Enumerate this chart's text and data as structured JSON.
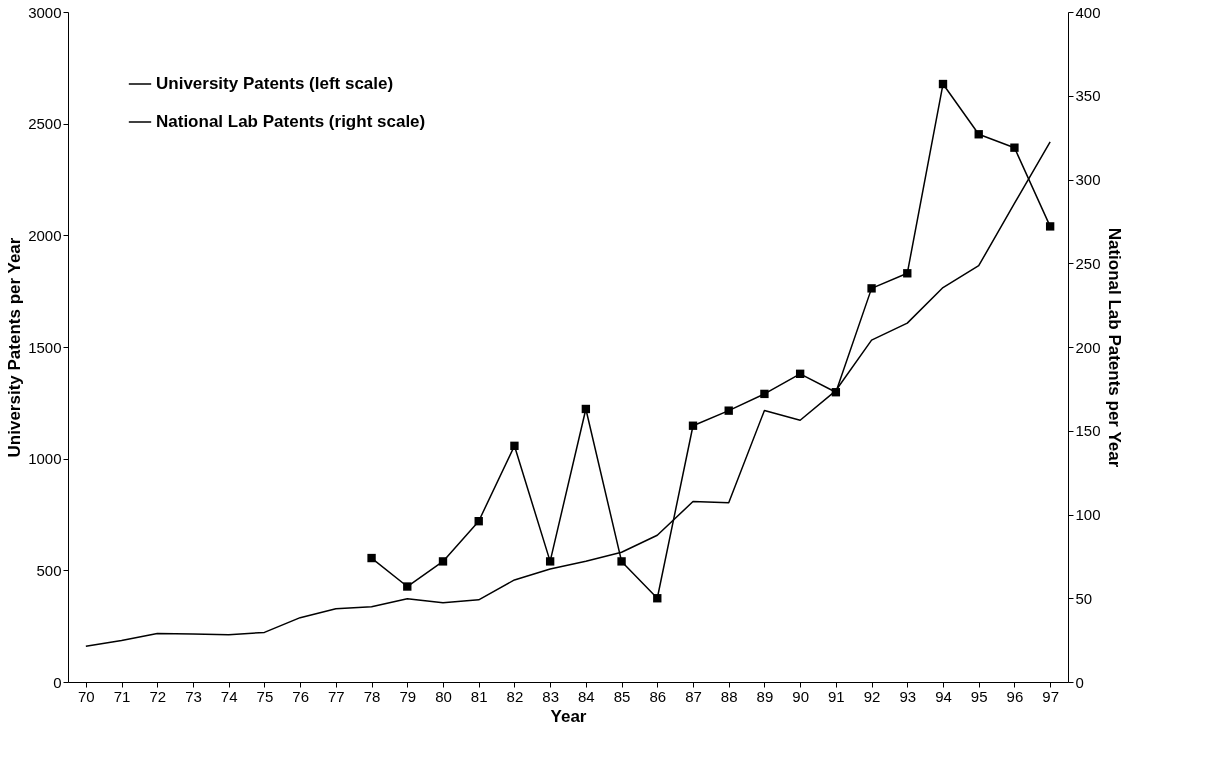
{
  "chart_data": {
    "type": "line",
    "xlabel": "Year",
    "ylabel": "University Patents per Year",
    "y2label": "National Lab Patents per Year",
    "categories": [
      "70",
      "71",
      "72",
      "73",
      "74",
      "75",
      "76",
      "77",
      "78",
      "79",
      "80",
      "81",
      "82",
      "83",
      "84",
      "85",
      "86",
      "87",
      "88",
      "89",
      "90",
      "91",
      "92",
      "93",
      "94",
      "95",
      "96",
      "97"
    ],
    "series": [
      {
        "name": "University Patents (left scale)",
        "color": "#000000",
        "marker": "none",
        "values": [
          160,
          186,
          217,
          215,
          212,
          222,
          288,
          328,
          337,
          373,
          355,
          368,
          457,
          506,
          541,
          581,
          657,
          808,
          803,
          1216,
          1172,
          1305,
          1531,
          1607,
          1766,
          1864,
          2143,
          2419
        ]
      },
      {
        "name": "National Lab Patents (right scale)",
        "color": "#000000",
        "marker": "square",
        "axis": "y2",
        "values": [
          null,
          null,
          null,
          null,
          null,
          null,
          null,
          null,
          74,
          57,
          72,
          96,
          141,
          72,
          163,
          72,
          50,
          153,
          162,
          172,
          184,
          173,
          235,
          244,
          357,
          327,
          319,
          272
        ]
      }
    ],
    "ylim": [
      0,
      3000
    ],
    "yticks": [
      0,
      500,
      1000,
      1500,
      2000,
      2500,
      3000
    ],
    "y2lim": [
      0,
      400
    ],
    "y2ticks": [
      0,
      50,
      100,
      150,
      200,
      250,
      300,
      350,
      400
    ],
    "grid": false,
    "legend": "top left",
    "line_style": "solid"
  }
}
